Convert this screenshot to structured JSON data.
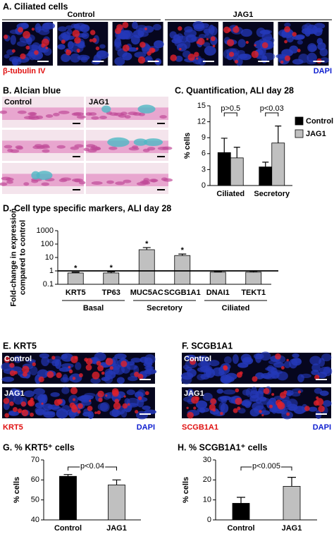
{
  "panel_a": {
    "title": "A. Ciliated cells",
    "groups": [
      "Control",
      "JAG1"
    ],
    "stain_red": "β-tubulin IV",
    "stain_blue": "DAPI"
  },
  "panel_b": {
    "title": "B. Alcian blue",
    "groups": [
      "Control",
      "JAG1"
    ]
  },
  "panel_e": {
    "title": "E. KRT5",
    "rows": [
      "Control",
      "JAG1"
    ],
    "stain_red": "KRT5",
    "stain_blue": "DAPI"
  },
  "panel_f": {
    "title": "F. SCGB1A1",
    "rows": [
      "Control",
      "JAG1"
    ],
    "stain_red": "SCGB1A1",
    "stain_blue": "DAPI"
  },
  "chart_data": [
    {
      "type": "bar",
      "title": "C. Quantification, ALI day 28",
      "ylabel": [
        "% cells"
      ],
      "categories": [
        "Ciliated",
        "Secretory"
      ],
      "series": [
        {
          "name": "Control",
          "color": "#000000",
          "values": [
            6.2,
            3.5
          ],
          "errors": [
            2.7,
            0.9
          ]
        },
        {
          "name": "JAG1",
          "color": "#c0c0c0",
          "values": [
            5.2,
            8.0
          ],
          "errors": [
            2.0,
            3.2
          ]
        }
      ],
      "p_values": [
        "p>0.5",
        "p<0.03"
      ],
      "legend": "right",
      "ylim": [
        0,
        15
      ],
      "yticks": [
        0,
        3,
        6,
        9,
        12,
        15
      ]
    },
    {
      "type": "bar",
      "title": "D. Cell type specific markers, ALI day 28",
      "ylabel": [
        "Fold-change in expression",
        "compared to control"
      ],
      "categories": [
        "KRT5",
        "TP63",
        "MUC5AC",
        "SCGB1A1",
        "DNAI1",
        "TEKT1"
      ],
      "values": [
        0.7,
        0.7,
        38,
        14,
        0.8,
        0.8
      ],
      "errors": [
        0.1,
        0.15,
        17,
        4,
        0.1,
        0.12
      ],
      "colors": [
        "#c0c0c0",
        "#c0c0c0",
        "#c0c0c0",
        "#c0c0c0",
        "#c0c0c0",
        "#c0c0c0"
      ],
      "star_labels": [
        "*",
        "*",
        "*",
        "*",
        null,
        null
      ],
      "groups": [
        "Basal",
        "Secretory",
        "Ciliated"
      ],
      "hline": 1,
      "log_scale": true,
      "ylim": [
        0.1,
        1000
      ],
      "yticks": [
        0.1,
        1,
        10,
        100,
        1000
      ]
    },
    {
      "type": "bar",
      "title": "G. % KRT5⁺ cells",
      "ylabel": [
        "% cells"
      ],
      "categories": [
        "Control",
        "JAG1"
      ],
      "values": [
        61.8,
        57.5
      ],
      "errors": [
        0.9,
        2.5
      ],
      "colors": [
        "#000000",
        "#c0c0c0"
      ],
      "p_value": "p<0.04",
      "ylim": [
        40,
        70
      ],
      "yticks": [
        40,
        50,
        60,
        70
      ]
    },
    {
      "type": "bar",
      "title": "H. % SCGB1A1⁺ cells",
      "ylabel": [
        "% cells"
      ],
      "categories": [
        "Control",
        "JAG1"
      ],
      "values": [
        8.3,
        16.8
      ],
      "errors": [
        3.0,
        4.5
      ],
      "colors": [
        "#000000",
        "#c0c0c0"
      ],
      "p_value": "p<0.005",
      "ylim": [
        0,
        30
      ],
      "yticks": [
        0,
        10,
        20,
        30
      ]
    }
  ]
}
